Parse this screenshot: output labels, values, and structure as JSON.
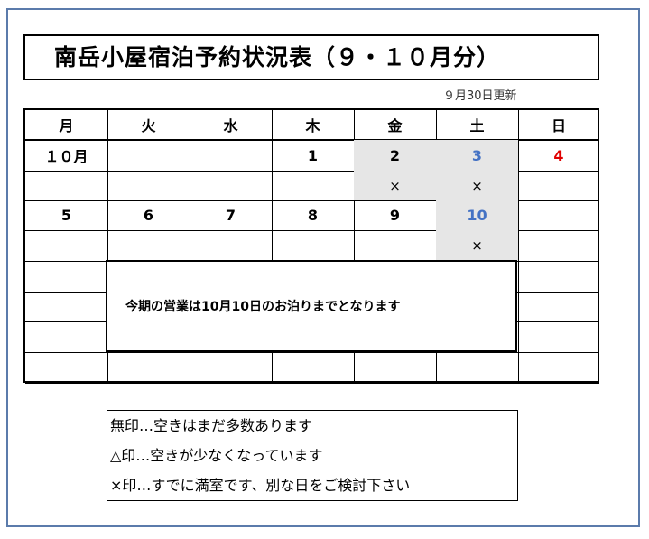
{
  "title": "南岳小屋宿泊予約状況表（９・１０月分）",
  "updated": "９月30日更新",
  "weekdays": [
    "月",
    "火",
    "水",
    "木",
    "金",
    "土",
    "日"
  ],
  "colors": {
    "saturday": "#4472c4",
    "sunday": "#e00000",
    "shaded": "#e6e6e6",
    "frame": "#5b7bab"
  },
  "rows": [
    {
      "type": "date",
      "cells": [
        {
          "text": "１０月"
        },
        {
          "text": ""
        },
        {
          "text": ""
        },
        {
          "text": "1"
        },
        {
          "text": "2",
          "shaded": true
        },
        {
          "text": "3",
          "shaded": true,
          "color": "saturday"
        },
        {
          "text": "4",
          "color": "sunday"
        }
      ]
    },
    {
      "type": "mark",
      "cells": [
        {
          "text": ""
        },
        {
          "text": ""
        },
        {
          "text": ""
        },
        {
          "text": ""
        },
        {
          "text": "×",
          "shaded": true
        },
        {
          "text": "×",
          "shaded": true
        },
        {
          "text": ""
        }
      ]
    },
    {
      "type": "date",
      "cells": [
        {
          "text": "5"
        },
        {
          "text": "6"
        },
        {
          "text": "7"
        },
        {
          "text": "8"
        },
        {
          "text": "9"
        },
        {
          "text": "10",
          "shaded": true,
          "color": "saturday"
        },
        {
          "text": ""
        }
      ]
    },
    {
      "type": "mark",
      "cells": [
        {
          "text": ""
        },
        {
          "text": ""
        },
        {
          "text": ""
        },
        {
          "text": ""
        },
        {
          "text": ""
        },
        {
          "text": "×",
          "shaded": true
        },
        {
          "text": ""
        }
      ]
    },
    {
      "type": "date",
      "cells": [
        {
          "text": ""
        },
        {
          "text": ""
        },
        {
          "text": ""
        },
        {
          "text": ""
        },
        {
          "text": ""
        },
        {
          "text": ""
        },
        {
          "text": ""
        }
      ]
    },
    {
      "type": "mark",
      "cells": [
        {
          "text": ""
        },
        {
          "text": ""
        },
        {
          "text": ""
        },
        {
          "text": ""
        },
        {
          "text": ""
        },
        {
          "text": ""
        },
        {
          "text": ""
        }
      ]
    },
    {
      "type": "date",
      "cells": [
        {
          "text": ""
        },
        {
          "text": ""
        },
        {
          "text": ""
        },
        {
          "text": ""
        },
        {
          "text": ""
        },
        {
          "text": ""
        },
        {
          "text": ""
        }
      ]
    },
    {
      "type": "mark",
      "cells": [
        {
          "text": ""
        },
        {
          "text": ""
        },
        {
          "text": ""
        },
        {
          "text": ""
        },
        {
          "text": ""
        },
        {
          "text": ""
        },
        {
          "text": ""
        }
      ]
    }
  ],
  "notice": "今期の営業は10月10日のお泊りまでとなります",
  "legend": [
    "無印…空きはまだ多数あります",
    "△印…空きが少なくなっています",
    "×印…すでに満室です、別な日をご検討下さい"
  ]
}
